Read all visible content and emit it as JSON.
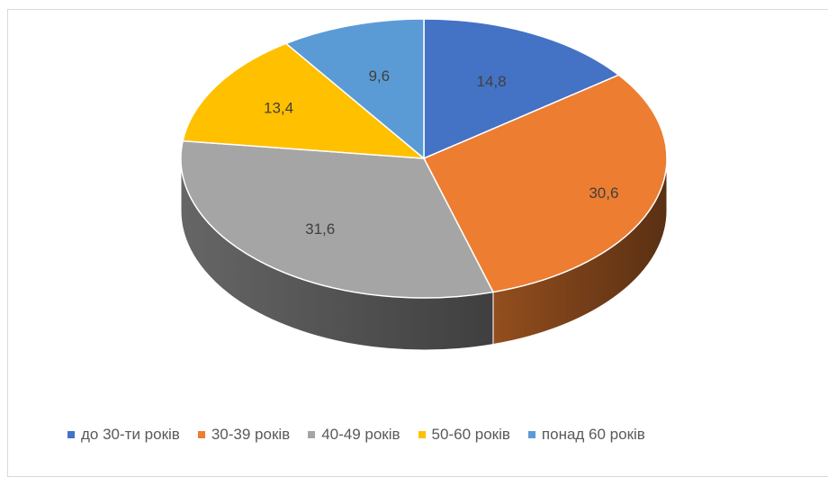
{
  "chart_data": {
    "type": "pie",
    "style": "3d",
    "categories": [
      "до 30-ти років",
      "30-39 років",
      "40-49 років",
      "50-60 років",
      "понад 60 років"
    ],
    "values": [
      14.8,
      30.6,
      31.6,
      13.4,
      9.6
    ],
    "data_labels": [
      "14,8",
      "30,6",
      "31,6",
      "13,4",
      "9,6"
    ],
    "colors": [
      "#4472c4",
      "#ed7d31",
      "#a5a5a5",
      "#ffc000",
      "#5b9bd5"
    ],
    "start_angle_deg": 0,
    "direction": "clockwise",
    "legend_position": "bottom"
  }
}
